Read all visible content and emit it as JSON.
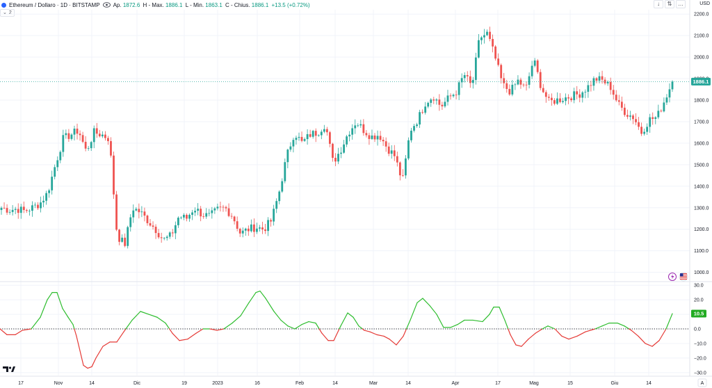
{
  "header": {
    "symbol_title": "Ethereum / Dollaro · 1D · BITSTAMP",
    "ohlc": [
      {
        "label": "Ap.",
        "value": "1872.6"
      },
      {
        "label": "H - Max.",
        "value": "1886.1"
      },
      {
        "label": "L - Min.",
        "value": "1863.1"
      },
      {
        "label": "C - Chius.",
        "value": "1886.1"
      }
    ],
    "change": "+13.5 (+0.72%)",
    "indicator_count": "2",
    "currency": "USD",
    "buttons": [
      "↓",
      "⇅",
      "…"
    ]
  },
  "colors": {
    "up": "#26a69a",
    "down": "#ef5350",
    "osc_up": "#2ebd2e",
    "osc_down": "#e53935",
    "last_price_bg": "#26a69a",
    "osc_label_bg": "#22ab22"
  },
  "chart_data": [
    {
      "type": "candlestick",
      "y_ticks": [
        "2200.0",
        "2100.0",
        "2000.0",
        "1900.0",
        "1800.0",
        "1700.0",
        "1600.0",
        "1500.0",
        "1400.0",
        "1300.0",
        "1200.0",
        "1100.0",
        "1000.0"
      ],
      "y_tick_values": [
        2200,
        2100,
        2000,
        1900,
        1800,
        1700,
        1600,
        1500,
        1400,
        1300,
        1200,
        1100,
        1000
      ],
      "ylim": [
        960,
        2220
      ],
      "last_price": "1886.1",
      "last_price_value": 1886.1,
      "close_path": [
        1300,
        1290,
        1295,
        1285,
        1300,
        1320,
        1370,
        1500,
        1620,
        1640,
        1660,
        1560,
        1650,
        1640,
        1620,
        1170,
        1130,
        1300,
        1280,
        1240,
        1200,
        1150,
        1170,
        1260,
        1250,
        1300,
        1270,
        1260,
        1290,
        1300,
        1260,
        1180,
        1200,
        1210,
        1200,
        1240,
        1370,
        1540,
        1650,
        1600,
        1640,
        1650,
        1690,
        1510,
        1570,
        1650,
        1700,
        1660,
        1630,
        1640,
        1580,
        1540,
        1420,
        1660,
        1710,
        1790,
        1820,
        1770,
        1810,
        1840,
        1920,
        1860,
        2090,
        2110,
        2000,
        1870,
        1840,
        1890,
        1850,
        1990,
        1860,
        1790,
        1800,
        1810,
        1820,
        1830,
        1860,
        1900,
        1890,
        1860,
        1780,
        1740,
        1720,
        1650,
        1710,
        1720,
        1800,
        1886
      ],
      "x_labels": [
        "17",
        "Nov",
        "14",
        "Dic",
        "19",
        "2023",
        "16",
        "Feb",
        "14",
        "Mar",
        "14",
        "Apr",
        "17",
        "Mag",
        "15",
        "Giu",
        "14"
      ],
      "x_label_pos": [
        30,
        84,
        132,
        197,
        265,
        313,
        370,
        431,
        482,
        537,
        587,
        655,
        716,
        768,
        820,
        884,
        933
      ]
    },
    {
      "type": "line",
      "y_ticks": [
        "30.0",
        "20.0",
        "10.0",
        "0.0",
        "−10.0",
        "−20.0",
        "−30.0"
      ],
      "y_tick_values": [
        30,
        20,
        10,
        0,
        -10,
        -20,
        -30
      ],
      "ylim": [
        -32,
        32
      ],
      "last_value": "10.5",
      "points": [
        [
          0,
          0
        ],
        [
          10,
          -4
        ],
        [
          22,
          -4
        ],
        [
          32,
          -1
        ],
        [
          45,
          0
        ],
        [
          58,
          8
        ],
        [
          68,
          20
        ],
        [
          75,
          25
        ],
        [
          82,
          25
        ],
        [
          90,
          14
        ],
        [
          98,
          8
        ],
        [
          105,
          3
        ],
        [
          110,
          -5
        ],
        [
          115,
          -15
        ],
        [
          120,
          -25
        ],
        [
          126,
          -27
        ],
        [
          132,
          -26
        ],
        [
          138,
          -20
        ],
        [
          148,
          -12
        ],
        [
          158,
          -9
        ],
        [
          168,
          -9
        ],
        [
          178,
          -2
        ],
        [
          190,
          6
        ],
        [
          202,
          12
        ],
        [
          214,
          10
        ],
        [
          226,
          8
        ],
        [
          238,
          4
        ],
        [
          248,
          -3
        ],
        [
          258,
          -8
        ],
        [
          270,
          -7
        ],
        [
          282,
          -3
        ],
        [
          292,
          0
        ],
        [
          302,
          0
        ],
        [
          312,
          -1
        ],
        [
          322,
          0
        ],
        [
          334,
          4
        ],
        [
          346,
          9
        ],
        [
          358,
          18
        ],
        [
          368,
          25
        ],
        [
          374,
          26
        ],
        [
          382,
          21
        ],
        [
          394,
          12
        ],
        [
          404,
          6
        ],
        [
          414,
          2
        ],
        [
          424,
          0
        ],
        [
          434,
          3
        ],
        [
          444,
          5
        ],
        [
          454,
          4
        ],
        [
          463,
          -3
        ],
        [
          472,
          -8
        ],
        [
          480,
          -8
        ],
        [
          490,
          2
        ],
        [
          500,
          11
        ],
        [
          508,
          8
        ],
        [
          516,
          2
        ],
        [
          524,
          -1
        ],
        [
          532,
          -2
        ],
        [
          542,
          -4
        ],
        [
          552,
          -5
        ],
        [
          560,
          -7
        ],
        [
          570,
          -11
        ],
        [
          580,
          -5
        ],
        [
          590,
          6
        ],
        [
          600,
          18
        ],
        [
          608,
          21
        ],
        [
          618,
          16
        ],
        [
          628,
          10
        ],
        [
          638,
          1
        ],
        [
          648,
          1
        ],
        [
          658,
          3
        ],
        [
          668,
          6
        ],
        [
          680,
          6
        ],
        [
          694,
          5
        ],
        [
          704,
          10
        ],
        [
          710,
          15
        ],
        [
          718,
          15
        ],
        [
          726,
          6
        ],
        [
          734,
          -4
        ],
        [
          742,
          -11
        ],
        [
          750,
          -12
        ],
        [
          760,
          -7
        ],
        [
          770,
          -3
        ],
        [
          780,
          0
        ],
        [
          788,
          2
        ],
        [
          798,
          0
        ],
        [
          808,
          -5
        ],
        [
          818,
          -7
        ],
        [
          830,
          -5
        ],
        [
          842,
          -2
        ],
        [
          856,
          0
        ],
        [
          866,
          2
        ],
        [
          876,
          4
        ],
        [
          888,
          4
        ],
        [
          898,
          2
        ],
        [
          908,
          -1
        ],
        [
          918,
          -5
        ],
        [
          928,
          -10
        ],
        [
          938,
          -12
        ],
        [
          948,
          -8
        ],
        [
          958,
          0
        ],
        [
          967,
          10.5
        ]
      ]
    }
  ]
}
